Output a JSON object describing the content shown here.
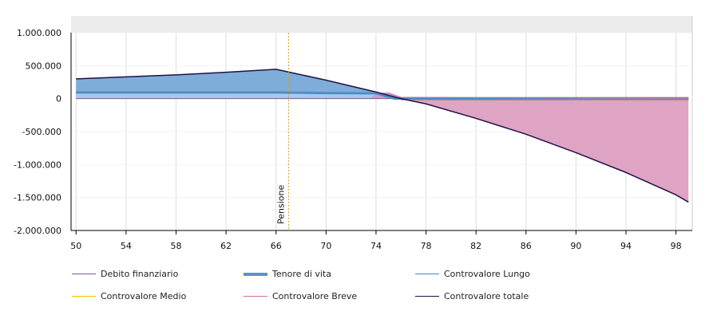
{
  "chart_data": {
    "type": "area",
    "xlim": [
      49.6,
      99.3
    ],
    "ylim": [
      -2000000,
      1000000
    ],
    "x_ticks": [
      50,
      54,
      58,
      62,
      66,
      70,
      74,
      78,
      82,
      86,
      90,
      94,
      98
    ],
    "x_tick_labels": [
      "50",
      "54",
      "58",
      "62",
      "66",
      "70",
      "74",
      "78",
      "82",
      "86",
      "90",
      "94",
      "98"
    ],
    "y_ticks": [
      1000000,
      500000,
      0,
      -500000,
      -1000000,
      -1500000,
      -2000000
    ],
    "y_tick_labels": [
      "1.000.000",
      "500.000",
      "0",
      "-500.000",
      "-1.000.000",
      "-1.500.000",
      "-2.000.000"
    ],
    "grid": "vertical",
    "legend_position": "bottom",
    "annotations": [
      {
        "x": 67,
        "label": "Pensione"
      }
    ],
    "series": [
      {
        "name": "Debito finanziario",
        "color": "#7b5a9b",
        "style": "line",
        "x": [
          50,
          99
        ],
        "y": [
          0,
          0
        ]
      },
      {
        "name": "Tenore di vita",
        "color": "#5b93c7",
        "style": "thick-line",
        "x": [
          50,
          54,
          58,
          62,
          66,
          70,
          74,
          75.5,
          99
        ],
        "y": [
          95000,
          95000,
          95000,
          95000,
          95000,
          85000,
          80000,
          0,
          0
        ]
      },
      {
        "name": "Controvalore Lungo",
        "color": "#3d85c6",
        "style": "line",
        "x": [
          50,
          54,
          58,
          62,
          66,
          70,
          74,
          75.5,
          99
        ],
        "y": [
          90000,
          90000,
          90000,
          90000,
          88000,
          80000,
          75000,
          0,
          0
        ]
      },
      {
        "name": "Controvalore Medio",
        "color": "#f2c200",
        "style": "line",
        "x": [
          50,
          99
        ],
        "y": [
          0,
          0
        ]
      },
      {
        "name": "Controvalore Breve",
        "color": "#c96fa3",
        "style": "line",
        "x": [
          74,
          75,
          76,
          99
        ],
        "y": [
          80000,
          85000,
          20000,
          0
        ]
      },
      {
        "name": "Controvalore totale",
        "color": "#1f1046",
        "style": "line",
        "x": [
          50,
          54,
          58,
          62,
          66,
          70,
          74,
          76,
          78,
          82,
          86,
          90,
          94,
          98,
          99
        ],
        "y": [
          300000,
          330000,
          360000,
          400000,
          445000,
          280000,
          100000,
          0,
          -80000,
          -300000,
          -540000,
          -820000,
          -1120000,
          -1460000,
          -1570000
        ]
      }
    ]
  }
}
